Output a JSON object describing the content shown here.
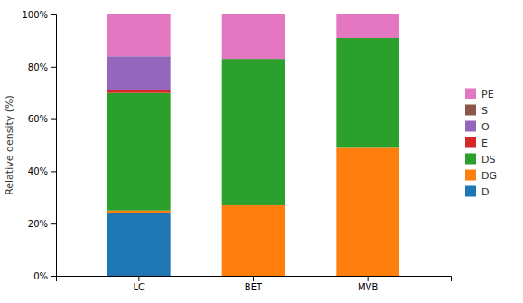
{
  "chart_data": {
    "type": "bar",
    "stacked": true,
    "categories": [
      "LC",
      "BET",
      "MVB"
    ],
    "series": [
      {
        "name": "D",
        "values": [
          24,
          0,
          0
        ]
      },
      {
        "name": "DG",
        "values": [
          1,
          27,
          49
        ]
      },
      {
        "name": "DS",
        "values": [
          45,
          56,
          42
        ]
      },
      {
        "name": "E",
        "values": [
          1,
          0,
          0
        ]
      },
      {
        "name": "O",
        "values": [
          13,
          0,
          0
        ]
      },
      {
        "name": "S",
        "values": [
          0,
          0,
          0
        ]
      },
      {
        "name": "PE",
        "values": [
          16,
          17,
          9
        ]
      }
    ],
    "ylabel": "Relative density (%)",
    "ylim": [
      0,
      100
    ],
    "yticks": [
      {
        "value": 0,
        "label": "0%"
      },
      {
        "value": 20,
        "label": "20%"
      },
      {
        "value": 40,
        "label": "40%"
      },
      {
        "value": 60,
        "label": "60%"
      },
      {
        "value": 80,
        "label": "80%"
      },
      {
        "value": 100,
        "label": "100%"
      }
    ],
    "grid": false,
    "legend": "right"
  }
}
